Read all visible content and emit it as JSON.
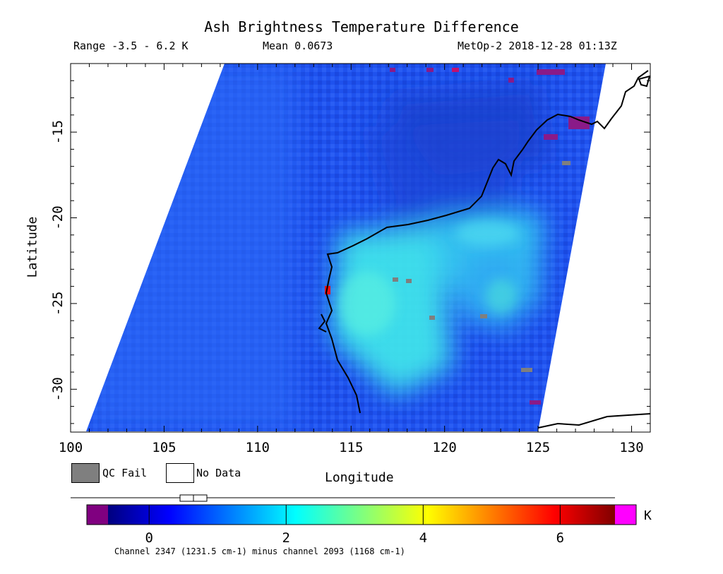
{
  "header": {
    "title": "Ash Brightness Temperature Difference",
    "range_text": "Range -3.5 - 6.2 K",
    "mean_text": "Mean 0.0673",
    "sat_text": "MetOp-2 2018-12-28 01:13Z"
  },
  "axes": {
    "xlabel": "Longitude",
    "ylabel": "Latitude",
    "xticks": [
      "100",
      "105",
      "110",
      "115",
      "120",
      "125",
      "130"
    ],
    "yticks": [
      "-15",
      "-20",
      "-25",
      "-30"
    ],
    "xlim": [
      100,
      131
    ],
    "ylim": [
      -32.5,
      -11
    ]
  },
  "legend": {
    "qc_fail_label": "QC Fail",
    "no_data_label": "No Data",
    "qc_fail_color": "#7f7f7f",
    "no_data_color": "#ffffff"
  },
  "colorbar": {
    "ticks": [
      "0",
      "2",
      "4",
      "6"
    ],
    "unit": "K",
    "caption": "Channel 2347 (1231.5 cm-1) minus channel 2093 (1168 cm-1)",
    "under_color": "#800080",
    "over_color": "#ff00ff",
    "range": [
      -1.5,
      6.2
    ]
  },
  "colors": {
    "background_field": "#1e50f0",
    "plume": "#3ee0ea",
    "coastline": "#000000"
  }
}
